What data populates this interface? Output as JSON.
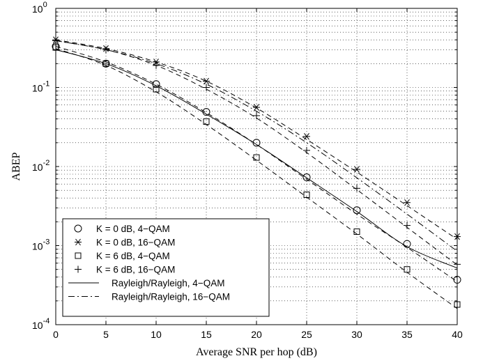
{
  "chart_data": {
    "type": "line",
    "title": "",
    "xlabel": "Average SNR per hop (dB)",
    "ylabel": "ABEP",
    "xlim": [
      0,
      40
    ],
    "ylim": [
      0.0001,
      1
    ],
    "yscale": "log",
    "grid": true,
    "x_ticks": [
      "0",
      "5",
      "10",
      "15",
      "20",
      "25",
      "30",
      "35",
      "40"
    ],
    "y_ticks": [
      {
        "base": "10",
        "exp": "-4",
        "value": 0.0001
      },
      {
        "base": "10",
        "exp": "-3",
        "value": 0.001
      },
      {
        "base": "10",
        "exp": "-2",
        "value": 0.01
      },
      {
        "base": "10",
        "exp": "-1",
        "value": 0.1
      },
      {
        "base": "10",
        "exp": "0",
        "value": 1
      }
    ],
    "legend_position": "lower-left",
    "series": [
      {
        "name": "K = 0 dB, 4−QAM",
        "marker": "circle",
        "line": "none",
        "x": [
          0,
          5,
          10,
          15,
          20,
          25,
          30,
          35,
          40
        ],
        "values": [
          0.33,
          0.2,
          0.11,
          0.049,
          0.02,
          0.0073,
          0.0028,
          0.00105,
          0.00037
        ]
      },
      {
        "name": "K = 0 dB, 16−QAM",
        "marker": "asterisk",
        "line": "none",
        "x": [
          0,
          5,
          10,
          15,
          20,
          25,
          30,
          35,
          40
        ],
        "values": [
          0.4,
          0.31,
          0.21,
          0.12,
          0.056,
          0.024,
          0.0092,
          0.0035,
          0.0013
        ]
      },
      {
        "name": "K = 6 dB, 4−QAM",
        "marker": "square",
        "line": "none",
        "x": [
          0,
          5,
          10,
          15,
          20,
          25,
          30,
          35,
          40
        ],
        "values": [
          0.32,
          0.2,
          0.095,
          0.037,
          0.013,
          0.0044,
          0.0015,
          0.0005,
          0.00018
        ]
      },
      {
        "name": "K = 6 dB, 16−QAM",
        "marker": "plus",
        "line": "none",
        "x": [
          0,
          5,
          10,
          15,
          20,
          25,
          30,
          35,
          40
        ],
        "values": [
          0.39,
          0.3,
          0.19,
          0.1,
          0.044,
          0.016,
          0.0053,
          0.0018,
          0.00058
        ]
      },
      {
        "name": "Rayleigh/Rayleigh, 4−QAM",
        "marker": "none",
        "line": "solid",
        "x": [
          0,
          5,
          10,
          15,
          20,
          25,
          30,
          35,
          40
        ],
        "values": [
          0.3,
          0.2,
          0.105,
          0.046,
          0.019,
          0.0072,
          0.0027,
          0.00097,
          0.00052
        ]
      },
      {
        "name": "Rayleigh/Rayleigh, 16−QAM",
        "marker": "none",
        "line": "dashdot",
        "x": [
          0,
          5,
          10,
          15,
          20,
          25,
          30,
          35,
          40
        ],
        "values": [
          0.39,
          0.3,
          0.2,
          0.11,
          0.05,
          0.02,
          0.0072,
          0.0025,
          0.00085
        ]
      }
    ],
    "unlabeled_curves": [
      {
        "line": "dashed",
        "x": [
          0,
          5,
          10,
          15,
          20,
          25,
          30,
          35,
          40
        ],
        "values": [
          0.33,
          0.21,
          0.11,
          0.048,
          0.019,
          0.0069,
          0.0025,
          0.00095,
          0.00035
        ]
      },
      {
        "line": "dashed",
        "x": [
          0,
          5,
          10,
          15,
          20,
          25,
          30,
          35,
          40
        ],
        "values": [
          0.31,
          0.19,
          0.088,
          0.034,
          0.012,
          0.0041,
          0.0014,
          0.00046,
          0.00016
        ]
      },
      {
        "line": "dashed",
        "x": [
          0,
          5,
          10,
          15,
          20,
          25,
          30,
          35,
          40
        ],
        "values": [
          0.4,
          0.31,
          0.21,
          0.12,
          0.055,
          0.022,
          0.0085,
          0.0032,
          0.0012
        ]
      },
      {
        "line": "dashed",
        "x": [
          0,
          5,
          10,
          15,
          20,
          25,
          30,
          35,
          40
        ],
        "values": [
          0.39,
          0.3,
          0.19,
          0.095,
          0.041,
          0.015,
          0.0051,
          0.0017,
          0.00057
        ]
      }
    ]
  }
}
